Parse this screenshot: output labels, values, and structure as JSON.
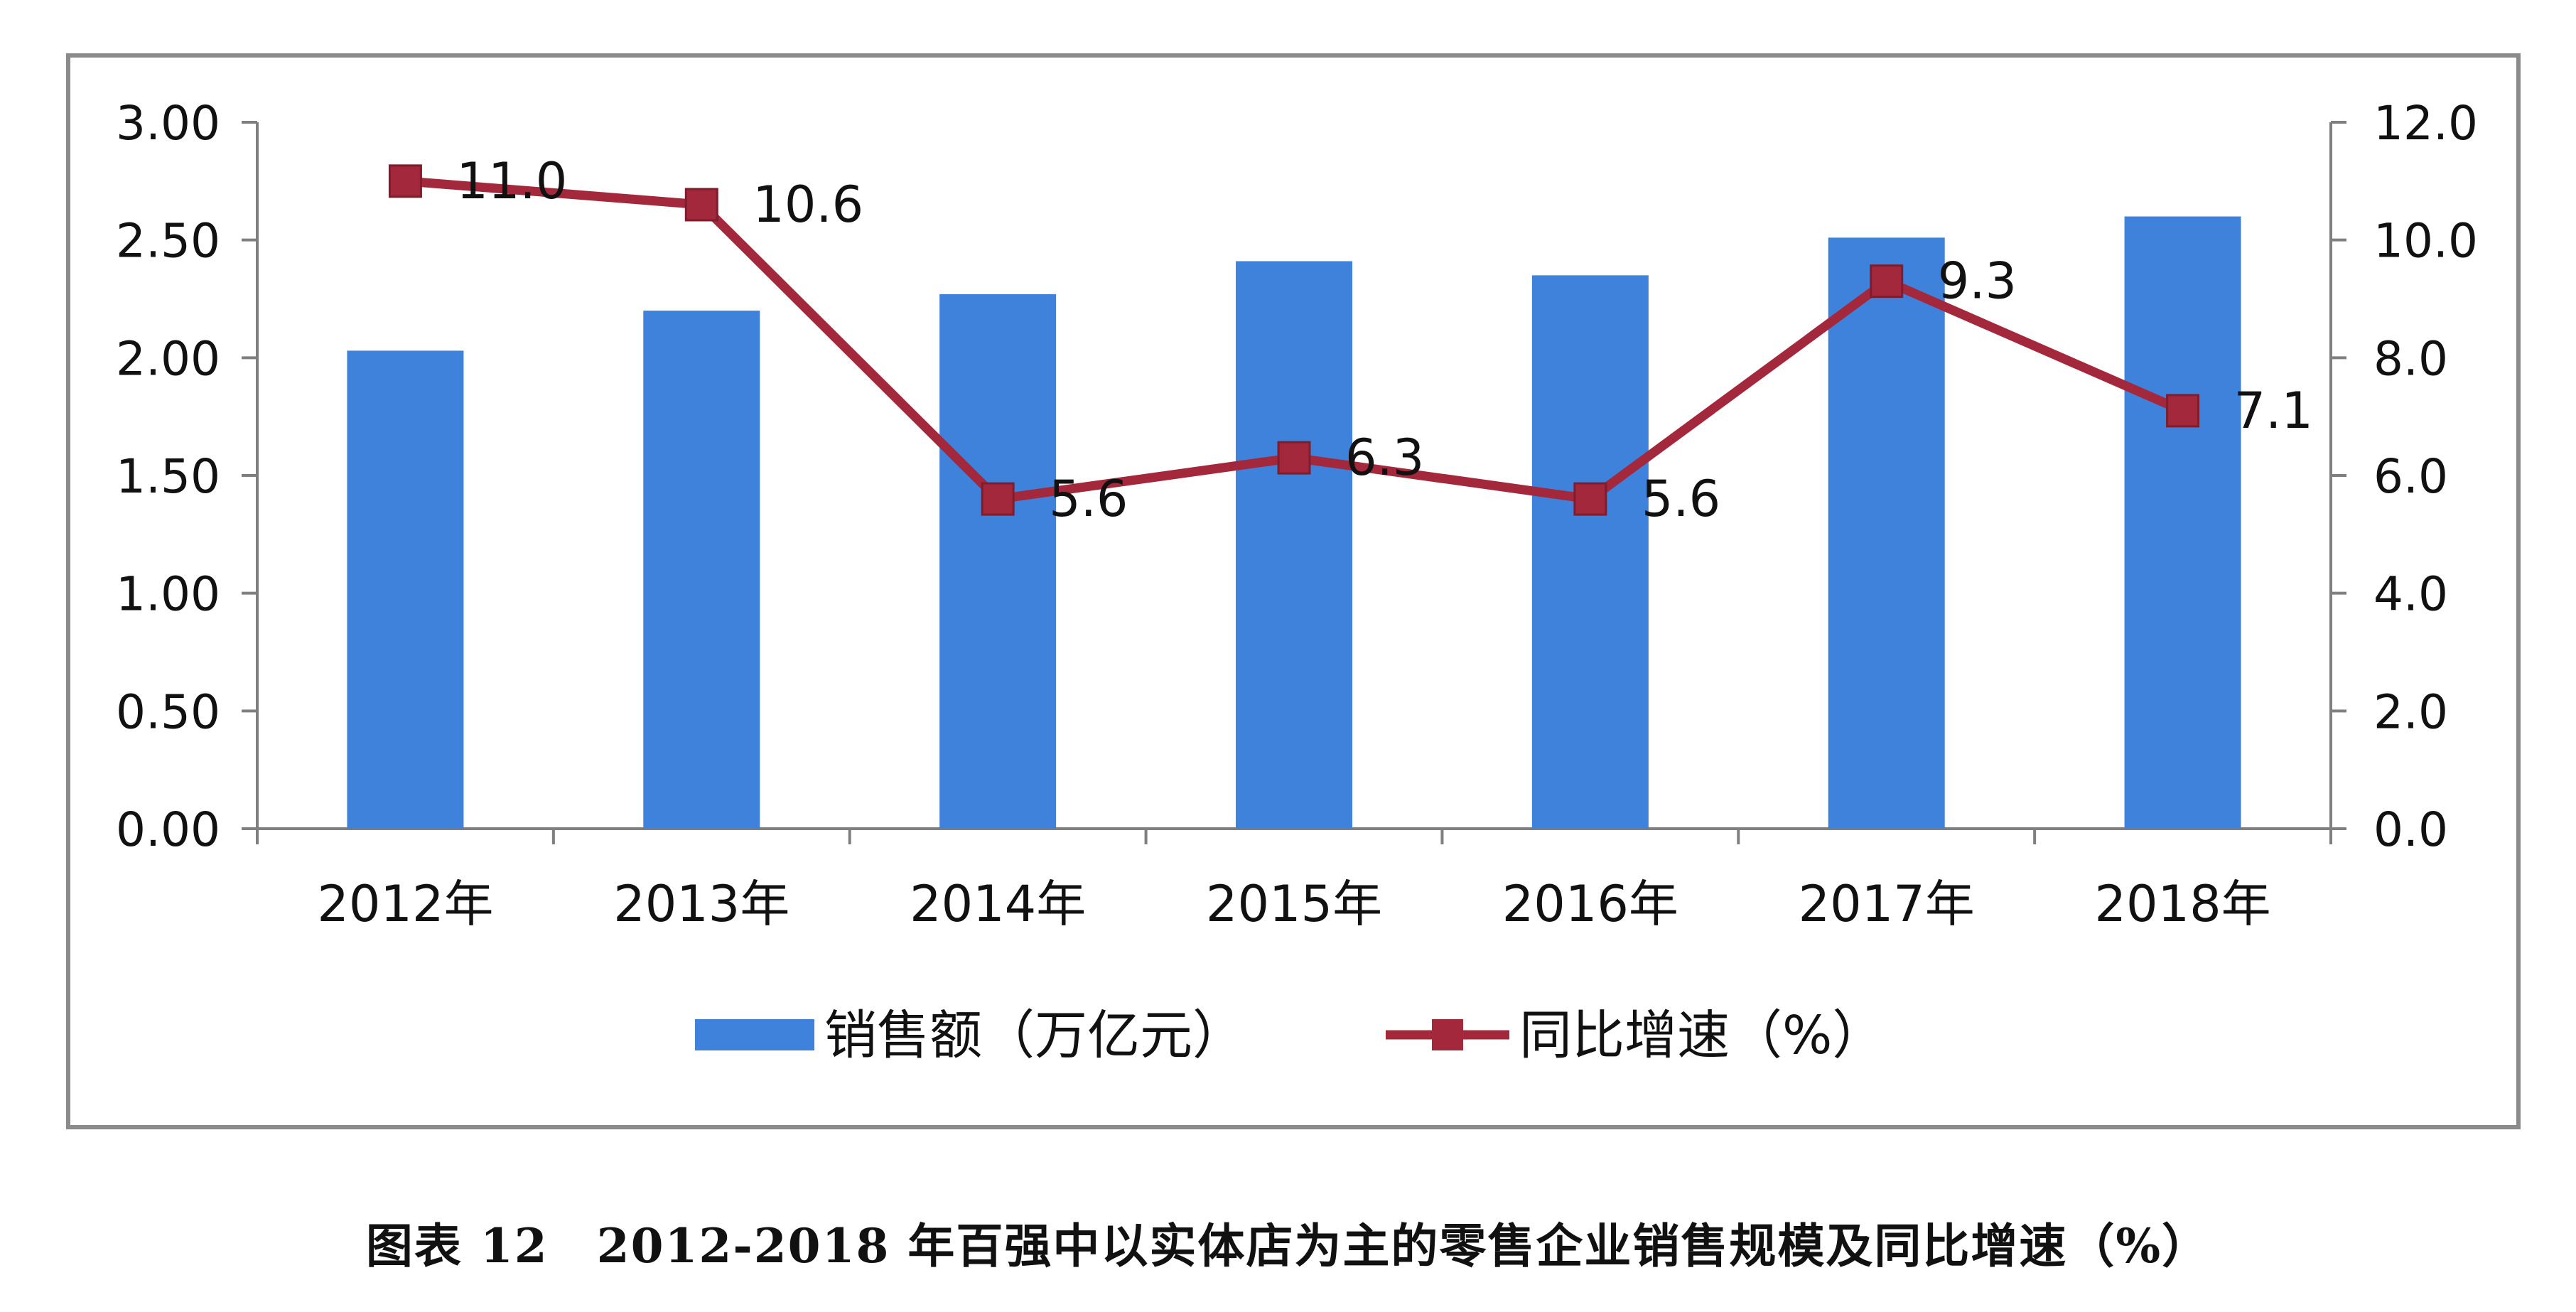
{
  "chart_data": {
    "type": "bar",
    "categories": [
      "2012年",
      "2013年",
      "2014年",
      "2015年",
      "2016年",
      "2017年",
      "2018年"
    ],
    "series": [
      {
        "name": "销售额（万亿元）",
        "type": "bar",
        "axis": "left",
        "color": "#3f82dc",
        "values": [
          2.03,
          2.2,
          2.27,
          2.41,
          2.35,
          2.51,
          2.6
        ]
      },
      {
        "name": "同比增速（%）",
        "type": "line",
        "axis": "right",
        "color": "#a3283b",
        "marker": "square",
        "values": [
          11.0,
          10.6,
          5.6,
          6.3,
          5.6,
          9.3,
          7.1
        ],
        "labels": [
          "11.0",
          "10.6",
          "5.6",
          "6.3",
          "5.6",
          "9.3",
          "7.1"
        ]
      }
    ],
    "y_left": {
      "ylim": [
        0,
        3.0
      ],
      "ticks": [
        "0.00",
        "0.50",
        "1.00",
        "1.50",
        "2.00",
        "2.50",
        "3.00"
      ]
    },
    "y_right": {
      "ylim": [
        0,
        12.0
      ],
      "ticks": [
        "0.0",
        "2.0",
        "4.0",
        "6.0",
        "8.0",
        "10.0",
        "12.0"
      ]
    },
    "grid": false,
    "legend": "bottom"
  },
  "caption": "图表 12　2012-2018 年百强中以实体店为主的零售企业销售规模及同比增速（%）"
}
